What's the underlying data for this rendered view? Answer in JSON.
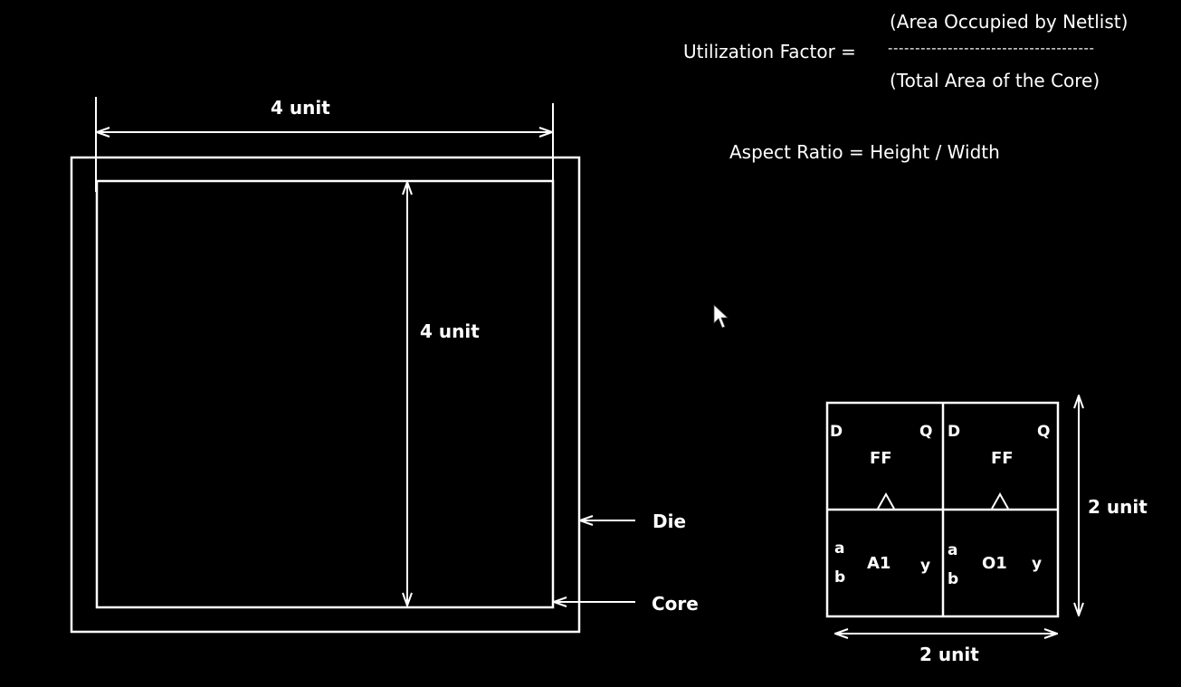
{
  "formulas": {
    "utilization_label": "Utilization Factor =",
    "numerator": "(Area Occupied by Netlist)",
    "fraction_bar": "--------------------------------------",
    "denominator": "(Total Area of the Core)",
    "aspect_ratio": "Aspect Ratio = Height / Width"
  },
  "core": {
    "width_label": "4 unit",
    "height_label": "4 unit"
  },
  "labels": {
    "die": "Die",
    "core": "Core"
  },
  "netlist": {
    "cells": [
      {
        "name": "FF",
        "pin_in": "D",
        "pin_out": "Q"
      },
      {
        "name": "FF",
        "pin_in": "D",
        "pin_out": "Q"
      },
      {
        "name": "A1",
        "pin_a": "a",
        "pin_b": "b",
        "pin_out": "y"
      },
      {
        "name": "O1",
        "pin_a": "a",
        "pin_b": "b",
        "pin_out": "y"
      }
    ],
    "width_label": "2 unit",
    "height_label": "2 unit"
  },
  "colors": {
    "background": "#000000",
    "stroke": "#ffffff"
  }
}
